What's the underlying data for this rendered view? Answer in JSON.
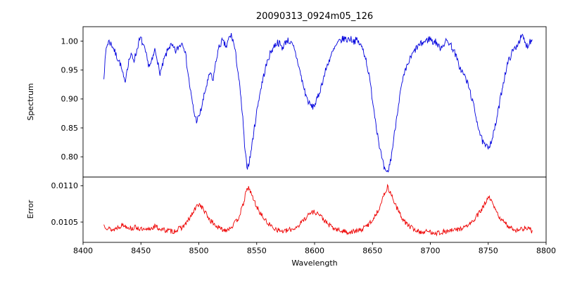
{
  "figure": {
    "title": "20090313_0924m05_126",
    "background_color": "#ffffff",
    "axes_color": "#000000"
  },
  "chart_data": [
    {
      "type": "line",
      "panel": "spectrum",
      "title": "20090313_0924m05_126",
      "ylabel": "Spectrum",
      "x_range": [
        8400,
        8800
      ],
      "x_ticks": [
        8400,
        8450,
        8500,
        8550,
        8600,
        8650,
        8700,
        8750,
        8800
      ],
      "x_tick_labels": [
        "8400",
        "8450",
        "8500",
        "8550",
        "8600",
        "8650",
        "8700",
        "8750",
        "8800"
      ],
      "ylim": [
        0.765,
        1.025
      ],
      "y_ticks": [
        0.8,
        0.85,
        0.9,
        0.95,
        1.0
      ],
      "y_tick_labels": [
        "0.80",
        "0.85",
        "0.90",
        "0.95",
        "1.00"
      ],
      "color": "#0000dd",
      "grid": false,
      "legend": "none",
      "noise_amplitude": 0.006,
      "points": [
        [
          8418,
          0.94
        ],
        [
          8420,
          0.988
        ],
        [
          8422,
          1.0
        ],
        [
          8424,
          0.996
        ],
        [
          8426,
          0.99
        ],
        [
          8428,
          0.978
        ],
        [
          8430,
          0.97
        ],
        [
          8432,
          0.962
        ],
        [
          8434,
          0.945
        ],
        [
          8436,
          0.928
        ],
        [
          8438,
          0.952
        ],
        [
          8440,
          0.97
        ],
        [
          8442,
          0.975
        ],
        [
          8444,
          0.968
        ],
        [
          8446,
          0.98
        ],
        [
          8448,
          0.998
        ],
        [
          8450,
          1.005
        ],
        [
          8452,
          0.992
        ],
        [
          8454,
          0.98
        ],
        [
          8456,
          0.962
        ],
        [
          8458,
          0.958
        ],
        [
          8460,
          0.968
        ],
        [
          8462,
          0.985
        ],
        [
          8464,
          0.972
        ],
        [
          8466,
          0.944
        ],
        [
          8468,
          0.952
        ],
        [
          8470,
          0.968
        ],
        [
          8472,
          0.978
        ],
        [
          8474,
          0.99
        ],
        [
          8476,
          0.992
        ],
        [
          8478,
          0.988
        ],
        [
          8480,
          0.982
        ],
        [
          8482,
          0.988
        ],
        [
          8484,
          0.994
        ],
        [
          8486,
          0.998
        ],
        [
          8488,
          0.985
        ],
        [
          8490,
          0.955
        ],
        [
          8492,
          0.925
        ],
        [
          8494,
          0.898
        ],
        [
          8496,
          0.875
        ],
        [
          8498,
          0.863
        ],
        [
          8500,
          0.868
        ],
        [
          8502,
          0.882
        ],
        [
          8504,
          0.9
        ],
        [
          8506,
          0.918
        ],
        [
          8508,
          0.932
        ],
        [
          8510,
          0.946
        ],
        [
          8512,
          0.93
        ],
        [
          8514,
          0.955
        ],
        [
          8516,
          0.978
        ],
        [
          8518,
          0.992
        ],
        [
          8520,
          1.0
        ],
        [
          8522,
          0.995
        ],
        [
          8524,
          0.99
        ],
        [
          8526,
          1.005
        ],
        [
          8528,
          1.01
        ],
        [
          8530,
          0.998
        ],
        [
          8532,
          0.975
        ],
        [
          8534,
          0.945
        ],
        [
          8536,
          0.908
        ],
        [
          8538,
          0.865
        ],
        [
          8540,
          0.805
        ],
        [
          8542,
          0.782
        ],
        [
          8544,
          0.795
        ],
        [
          8546,
          0.822
        ],
        [
          8548,
          0.85
        ],
        [
          8550,
          0.878
        ],
        [
          8552,
          0.902
        ],
        [
          8554,
          0.922
        ],
        [
          8556,
          0.94
        ],
        [
          8558,
          0.956
        ],
        [
          8560,
          0.97
        ],
        [
          8562,
          0.98
        ],
        [
          8564,
          0.988
        ],
        [
          8566,
          0.994
        ],
        [
          8568,
          0.998
        ],
        [
          8570,
          0.995
        ],
        [
          8572,
          0.988
        ],
        [
          8574,
          0.995
        ],
        [
          8576,
          1.002
        ],
        [
          8578,
          1.0
        ],
        [
          8580,
          0.995
        ],
        [
          8582,
          0.988
        ],
        [
          8584,
          0.975
        ],
        [
          8586,
          0.96
        ],
        [
          8588,
          0.942
        ],
        [
          8590,
          0.925
        ],
        [
          8592,
          0.91
        ],
        [
          8594,
          0.898
        ],
        [
          8596,
          0.89
        ],
        [
          8598,
          0.886
        ],
        [
          8600,
          0.89
        ],
        [
          8602,
          0.898
        ],
        [
          8604,
          0.91
        ],
        [
          8606,
          0.924
        ],
        [
          8608,
          0.938
        ],
        [
          8610,
          0.952
        ],
        [
          8612,
          0.964
        ],
        [
          8614,
          0.974
        ],
        [
          8616,
          0.982
        ],
        [
          8618,
          0.99
        ],
        [
          8620,
          0.996
        ],
        [
          8622,
          1.0
        ],
        [
          8624,
          1.003
        ],
        [
          8626,
          1.005
        ],
        [
          8628,
          1.002
        ],
        [
          8630,
          1.005
        ],
        [
          8632,
          1.003
        ],
        [
          8634,
          1.0
        ],
        [
          8636,
          1.002
        ],
        [
          8638,
          0.998
        ],
        [
          8640,
          0.992
        ],
        [
          8642,
          0.985
        ],
        [
          8644,
          0.972
        ],
        [
          8646,
          0.952
        ],
        [
          8648,
          0.928
        ],
        [
          8650,
          0.9
        ],
        [
          8652,
          0.872
        ],
        [
          8654,
          0.845
        ],
        [
          8656,
          0.82
        ],
        [
          8658,
          0.798
        ],
        [
          8660,
          0.78
        ],
        [
          8662,
          0.77
        ],
        [
          8664,
          0.778
        ],
        [
          8666,
          0.798
        ],
        [
          8668,
          0.825
        ],
        [
          8670,
          0.856
        ],
        [
          8672,
          0.885
        ],
        [
          8674,
          0.91
        ],
        [
          8676,
          0.93
        ],
        [
          8678,
          0.945
        ],
        [
          8680,
          0.957
        ],
        [
          8682,
          0.967
        ],
        [
          8684,
          0.975
        ],
        [
          8686,
          0.982
        ],
        [
          8688,
          0.988
        ],
        [
          8690,
          0.992
        ],
        [
          8692,
          0.995
        ],
        [
          8694,
          0.998
        ],
        [
          8696,
          1.0
        ],
        [
          8698,
          1.003
        ],
        [
          8700,
          1.005
        ],
        [
          8702,
          0.998
        ],
        [
          8704,
          1.0
        ],
        [
          8706,
          0.995
        ],
        [
          8708,
          0.988
        ],
        [
          8710,
          0.992
        ],
        [
          8712,
          0.996
        ],
        [
          8714,
          1.0
        ],
        [
          8716,
          0.998
        ],
        [
          8718,
          0.992
        ],
        [
          8720,
          0.985
        ],
        [
          8722,
          0.975
        ],
        [
          8724,
          0.962
        ],
        [
          8726,
          0.952
        ],
        [
          8728,
          0.945
        ],
        [
          8730,
          0.938
        ],
        [
          8732,
          0.928
        ],
        [
          8734,
          0.915
        ],
        [
          8736,
          0.9
        ],
        [
          8738,
          0.882
        ],
        [
          8740,
          0.865
        ],
        [
          8742,
          0.848
        ],
        [
          8744,
          0.832
        ],
        [
          8746,
          0.822
        ],
        [
          8748,
          0.817
        ],
        [
          8750,
          0.818
        ],
        [
          8752,
          0.824
        ],
        [
          8754,
          0.836
        ],
        [
          8756,
          0.852
        ],
        [
          8758,
          0.872
        ],
        [
          8760,
          0.895
        ],
        [
          8762,
          0.918
        ],
        [
          8764,
          0.938
        ],
        [
          8766,
          0.955
        ],
        [
          8768,
          0.968
        ],
        [
          8770,
          0.978
        ],
        [
          8772,
          0.985
        ],
        [
          8774,
          0.99
        ],
        [
          8776,
          0.998
        ],
        [
          8778,
          1.005
        ],
        [
          8780,
          1.008
        ],
        [
          8782,
          0.995
        ],
        [
          8784,
          0.992
        ],
        [
          8786,
          1.0
        ],
        [
          8788,
          1.002
        ]
      ]
    },
    {
      "type": "line",
      "panel": "error",
      "ylabel": "Error",
      "xlabel": "Wavelength",
      "x_range": [
        8400,
        8800
      ],
      "x_ticks": [
        8400,
        8450,
        8500,
        8550,
        8600,
        8650,
        8700,
        8750,
        8800
      ],
      "x_tick_labels": [
        "8400",
        "8450",
        "8500",
        "8550",
        "8600",
        "8650",
        "8700",
        "8750",
        "8800"
      ],
      "ylim": [
        0.01022,
        0.01112
      ],
      "y_ticks": [
        0.0105,
        0.011
      ],
      "y_tick_labels": [
        "0.0105",
        "0.0110"
      ],
      "color": "#ee0000",
      "grid": false,
      "legend": "none",
      "noise_amplitude": 3.5e-05,
      "points": [
        [
          8418,
          0.01046
        ],
        [
          8422,
          0.01041
        ],
        [
          8426,
          0.01039
        ],
        [
          8430,
          0.01043
        ],
        [
          8434,
          0.01046
        ],
        [
          8438,
          0.01044
        ],
        [
          8442,
          0.01041
        ],
        [
          8446,
          0.01043
        ],
        [
          8450,
          0.0104
        ],
        [
          8454,
          0.01038
        ],
        [
          8458,
          0.01041
        ],
        [
          8462,
          0.01044
        ],
        [
          8466,
          0.01041
        ],
        [
          8470,
          0.01039
        ],
        [
          8474,
          0.01038
        ],
        [
          8478,
          0.01037
        ],
        [
          8482,
          0.0104
        ],
        [
          8486,
          0.01043
        ],
        [
          8490,
          0.0105
        ],
        [
          8494,
          0.0106
        ],
        [
          8498,
          0.01071
        ],
        [
          8500,
          0.01075
        ],
        [
          8502,
          0.01072
        ],
        [
          8506,
          0.01062
        ],
        [
          8510,
          0.01052
        ],
        [
          8514,
          0.01046
        ],
        [
          8518,
          0.01041
        ],
        [
          8522,
          0.01039
        ],
        [
          8526,
          0.01041
        ],
        [
          8530,
          0.01046
        ],
        [
          8534,
          0.01055
        ],
        [
          8538,
          0.01072
        ],
        [
          8541,
          0.01092
        ],
        [
          8543,
          0.01098
        ],
        [
          8546,
          0.01086
        ],
        [
          8550,
          0.01071
        ],
        [
          8554,
          0.0106
        ],
        [
          8558,
          0.01051
        ],
        [
          8562,
          0.01045
        ],
        [
          8566,
          0.01041
        ],
        [
          8570,
          0.01038
        ],
        [
          8574,
          0.01037
        ],
        [
          8578,
          0.01039
        ],
        [
          8582,
          0.01041
        ],
        [
          8586,
          0.01045
        ],
        [
          8590,
          0.01052
        ],
        [
          8594,
          0.01059
        ],
        [
          8598,
          0.01064
        ],
        [
          8602,
          0.01063
        ],
        [
          8606,
          0.01057
        ],
        [
          8610,
          0.01049
        ],
        [
          8614,
          0.01044
        ],
        [
          8618,
          0.0104
        ],
        [
          8622,
          0.01038
        ],
        [
          8626,
          0.01037
        ],
        [
          8630,
          0.01036
        ],
        [
          8634,
          0.01037
        ],
        [
          8638,
          0.01038
        ],
        [
          8642,
          0.01041
        ],
        [
          8646,
          0.01046
        ],
        [
          8650,
          0.01053
        ],
        [
          8654,
          0.01063
        ],
        [
          8658,
          0.01078
        ],
        [
          8661,
          0.01092
        ],
        [
          8663,
          0.01098
        ],
        [
          8666,
          0.01089
        ],
        [
          8670,
          0.01073
        ],
        [
          8674,
          0.0106
        ],
        [
          8678,
          0.0105
        ],
        [
          8682,
          0.01044
        ],
        [
          8686,
          0.0104
        ],
        [
          8690,
          0.01037
        ],
        [
          8694,
          0.01036
        ],
        [
          8698,
          0.01037
        ],
        [
          8702,
          0.01036
        ],
        [
          8706,
          0.01035
        ],
        [
          8710,
          0.01036
        ],
        [
          8714,
          0.01037
        ],
        [
          8718,
          0.01038
        ],
        [
          8722,
          0.01039
        ],
        [
          8726,
          0.01041
        ],
        [
          8730,
          0.01043
        ],
        [
          8734,
          0.01047
        ],
        [
          8738,
          0.01053
        ],
        [
          8742,
          0.01062
        ],
        [
          8746,
          0.01072
        ],
        [
          8749,
          0.01081
        ],
        [
          8751,
          0.01083
        ],
        [
          8754,
          0.01074
        ],
        [
          8758,
          0.01061
        ],
        [
          8762,
          0.01052
        ],
        [
          8766,
          0.01046
        ],
        [
          8770,
          0.01042
        ],
        [
          8774,
          0.01039
        ],
        [
          8778,
          0.0104
        ],
        [
          8782,
          0.01042
        ],
        [
          8786,
          0.0104
        ],
        [
          8788,
          0.01037
        ]
      ]
    }
  ],
  "layout_hints": {
    "shared_x": true,
    "panels_stacked": true,
    "height_ratio": "spectrum larger than error",
    "grid": false,
    "legend": "none"
  }
}
